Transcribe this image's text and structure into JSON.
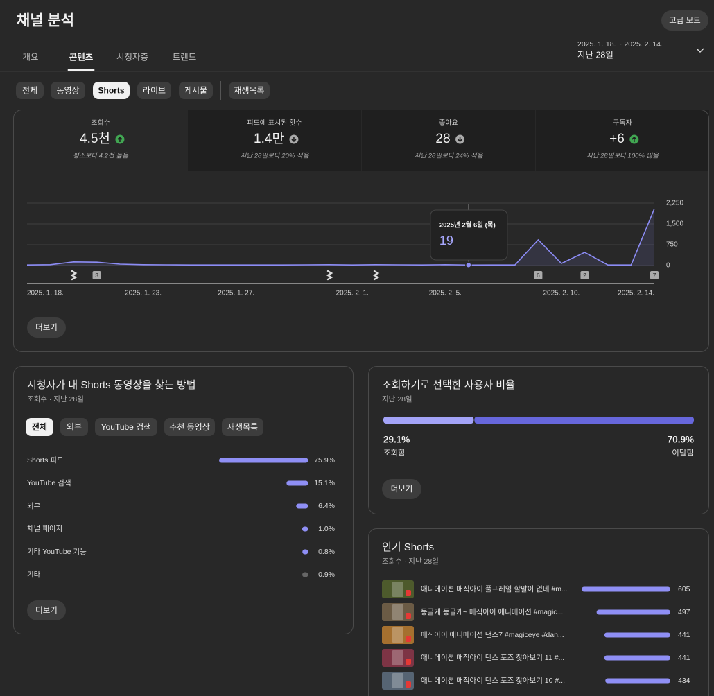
{
  "header": {
    "title": "채널 분석",
    "advanced_mode": "고급 모드",
    "date_range": "2025. 1. 18. ~ 2025. 2. 14.",
    "period": "지난 28일"
  },
  "tabs": {
    "items": [
      "개요",
      "콘텐츠",
      "시청자층",
      "트렌드"
    ],
    "active": 1
  },
  "filters": {
    "items": [
      "전체",
      "동영상",
      "Shorts",
      "라이브",
      "게시물",
      "재생목록"
    ],
    "active": 2
  },
  "metrics": [
    {
      "label": "조회수",
      "value": "4.5천",
      "trend": "up",
      "note": "평소보다 4.2천 높음"
    },
    {
      "label": "피드에 표시된 횟수",
      "value": "1.4만",
      "trend": "down",
      "note": "지난 28일보다 20% 적음"
    },
    {
      "label": "좋아요",
      "value": "28",
      "trend": "down",
      "note": "지난 28일보다 24% 적음"
    },
    {
      "label": "구독자",
      "value": "+6",
      "trend": "up",
      "note": "지난 28일보다 100% 많음"
    }
  ],
  "chart_data": [
    {
      "type": "area",
      "color": "#8c8cf5",
      "categories": [
        "2025. 1. 18.",
        null,
        null,
        null,
        null,
        "2025. 1. 23.",
        null,
        null,
        null,
        "2025. 1. 27.",
        null,
        null,
        null,
        null,
        "2025. 2. 1.",
        null,
        null,
        null,
        "2025. 2. 5.",
        null,
        null,
        null,
        null,
        "2025. 2. 10.",
        null,
        null,
        null,
        "2025. 2. 14."
      ],
      "values": [
        20,
        30,
        130,
        120,
        50,
        30,
        25,
        20,
        20,
        20,
        20,
        20,
        25,
        30,
        20,
        30,
        25,
        20,
        30,
        19,
        20,
        20,
        925,
        75,
        475,
        20,
        20,
        2050
      ],
      "markers": [
        null,
        null,
        null,
        "3",
        null,
        null,
        null,
        null,
        null,
        null,
        null,
        null,
        null,
        null,
        null,
        null,
        null,
        null,
        null,
        null,
        null,
        null,
        "6",
        null,
        "2",
        null,
        null,
        "7"
      ],
      "ylim": [
        0,
        2250
      ],
      "yticks": [
        0,
        750,
        {
          "value": 1500,
          "label": "1,500"
        },
        {
          "value": 2250,
          "label": "2,250"
        }
      ],
      "grid": true,
      "tooltip": "2025년 2월 6일 (목)",
      "more_label": "더보기"
    },
    {
      "type": "bar",
      "title": "시청자가 내 Shorts 동영상을 찾는 방법",
      "subtitle": "조회수 · 지난 28일",
      "chips": [
        "전체",
        "외부",
        "YouTube 검색",
        "추천 동영상",
        "재생목록"
      ],
      "active_chip": 0,
      "categories": [
        "Shorts 피드",
        "YouTube 검색",
        "외부",
        "채널 페이지",
        "기타 YouTube 기능",
        "기타"
      ],
      "values": [
        75.9,
        15.1,
        6.4,
        1.0,
        0.8,
        0.9
      ],
      "value_labels": [
        "75.9%",
        "15.1%",
        "6.4%",
        "1.0%",
        "0.8%",
        "0.9%"
      ],
      "colors": [
        "#8f8ff5",
        "#8f8ff5",
        "#8f8ff5",
        "#8f8ff5",
        "#8f8ff5",
        "#666666"
      ],
      "more_label": "더보기"
    },
    {
      "type": "stacked_bar",
      "title": "조회하기로 선택한 사용자 비율",
      "subtitle": "지난 28일",
      "categories": [
        "조회함",
        "이탈함"
      ],
      "values": [
        29.1,
        70.9
      ],
      "value_labels": [
        "29.1%",
        "70.9%"
      ],
      "colors": [
        "#a3a3f7",
        "#6767dc"
      ],
      "more_label": "더보기"
    },
    {
      "type": "bar",
      "title": "인기 Shorts",
      "subtitle": "조회수 · 지난 28일",
      "categories": [
        "애니메이션 매직아이 풀프레임 할말이 없네 #m...",
        "둥글게 둥글게~ 매직아이 애니메이션 #magic...",
        "매직아이 애니메이션 댄스7 #magiceye #dan...",
        "애니메이션 매직아이 댄스 포즈 찾아보기 11 #...",
        "애니메이션 매직아이 댄스 포즈 찾아보기 10 #..."
      ],
      "values": [
        605,
        497,
        441,
        441,
        434
      ],
      "colors": [
        "#8f8ff5",
        "#8f8ff5",
        "#8f8ff5",
        "#8f8ff5",
        "#8f8ff5"
      ]
    }
  ]
}
